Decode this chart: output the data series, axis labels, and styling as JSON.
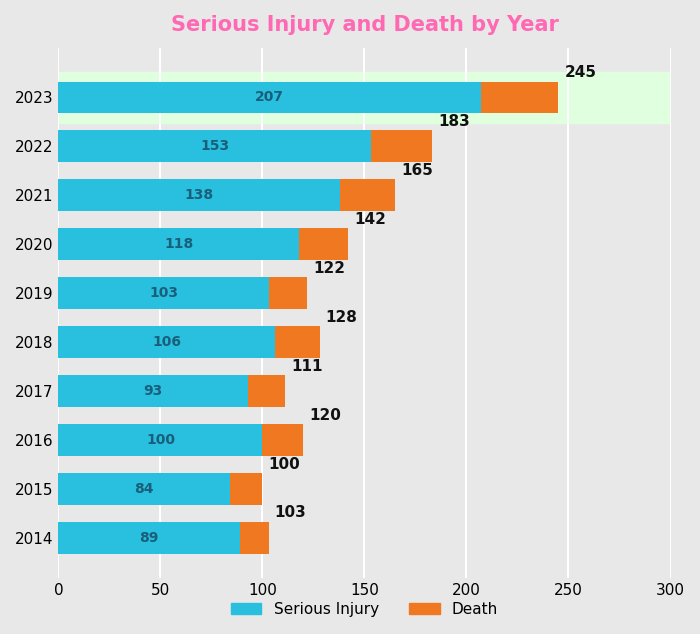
{
  "years": [
    "2014",
    "2015",
    "2016",
    "2017",
    "2018",
    "2019",
    "2020",
    "2021",
    "2022",
    "2023"
  ],
  "serious_injuries": [
    89,
    84,
    100,
    93,
    106,
    103,
    118,
    138,
    153,
    207
  ],
  "deaths": [
    14,
    16,
    20,
    18,
    22,
    19,
    24,
    27,
    30,
    38
  ],
  "bar_color_injuries": "#29C0E0",
  "bar_color_deaths": "#F07820",
  "title": "Serious Injury and Death by Year",
  "xlim": [
    0,
    300
  ],
  "xticks": [
    0,
    50,
    100,
    150,
    200,
    250,
    300
  ],
  "background_color": "#E8E8E8",
  "highlight_color": "#DFFFDF",
  "highlight_year": "2023",
  "legend_injury_label": "Serious Injury",
  "legend_death_label": "Death",
  "bar_height": 0.65,
  "title_fontsize": 15,
  "tick_fontsize": 11,
  "inj_label_fontsize": 10,
  "death_label_fontsize": 9,
  "total_label_fontsize": 11,
  "annotation_color": "#111111",
  "grid_color": "#FFFFFF",
  "title_color": "#FF69B4"
}
